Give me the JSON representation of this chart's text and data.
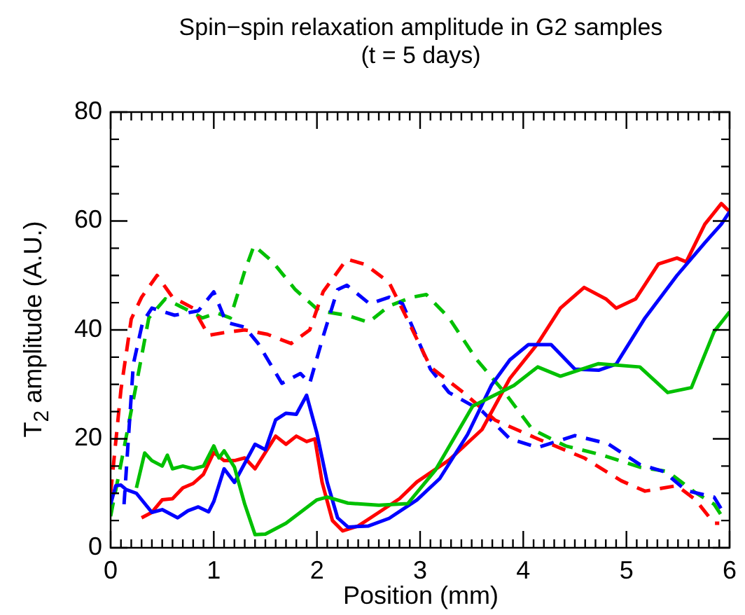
{
  "chart_data": {
    "type": "line",
    "title": "Spin−spin relaxation amplitude in G2 samples",
    "subtitle": "(t = 5 days)",
    "xlabel": "Position (mm)",
    "ylabel": "T$_{2}$ amplitude (A.U.)",
    "xlim": [
      0,
      6
    ],
    "ylim": [
      0,
      80
    ],
    "xticks": [
      0,
      {
        "value": 0.1,
        "label": null
      },
      {
        "value": 0.2,
        "label": null
      },
      {
        "value": 0.3,
        "label": null
      },
      {
        "value": 0.4,
        "label": null
      },
      {
        "value": 0.5,
        "label": null
      },
      {
        "value": 0.6,
        "label": null
      },
      {
        "value": 0.7,
        "label": null
      },
      {
        "value": 0.8,
        "label": null
      },
      {
        "value": 0.9,
        "label": null
      },
      1,
      {
        "value": 1.1,
        "label": null
      },
      {
        "value": 1.2,
        "label": null
      },
      {
        "value": 1.3,
        "label": null
      },
      {
        "value": 1.4,
        "label": null
      },
      {
        "value": 1.5,
        "label": null
      },
      {
        "value": 1.6,
        "label": null
      },
      {
        "value": 1.7,
        "label": null
      },
      {
        "value": 1.8,
        "label": null
      },
      {
        "value": 1.9,
        "label": null
      },
      2,
      {
        "value": 2.1,
        "label": null
      },
      {
        "value": 2.2,
        "label": null
      },
      {
        "value": 2.3,
        "label": null
      },
      {
        "value": 2.4,
        "label": null
      },
      {
        "value": 2.5,
        "label": null
      },
      {
        "value": 2.6,
        "label": null
      },
      {
        "value": 2.7,
        "label": null
      },
      {
        "value": 2.8,
        "label": null
      },
      {
        "value": 2.9,
        "label": null
      },
      3,
      {
        "value": 3.1,
        "label": null
      },
      {
        "value": 3.2,
        "label": null
      },
      {
        "value": 3.3,
        "label": null
      },
      {
        "value": 3.4,
        "label": null
      },
      {
        "value": 3.5,
        "label": null
      },
      {
        "value": 3.6,
        "label": null
      },
      {
        "value": 3.7,
        "label": null
      },
      {
        "value": 3.8,
        "label": null
      },
      {
        "value": 3.9,
        "label": null
      },
      4,
      {
        "value": 4.1,
        "label": null
      },
      {
        "value": 4.2,
        "label": null
      },
      {
        "value": 4.3,
        "label": null
      },
      {
        "value": 4.4,
        "label": null
      },
      {
        "value": 4.5,
        "label": null
      },
      {
        "value": 4.6,
        "label": null
      },
      {
        "value": 4.7,
        "label": null
      },
      {
        "value": 4.8,
        "label": null
      },
      {
        "value": 4.9,
        "label": null
      },
      5,
      {
        "value": 5.1,
        "label": null
      },
      {
        "value": 5.2,
        "label": null
      },
      {
        "value": 5.3,
        "label": null
      },
      {
        "value": 5.4,
        "label": null
      },
      {
        "value": 5.5,
        "label": null
      },
      {
        "value": 5.6,
        "label": null
      },
      {
        "value": 5.7,
        "label": null
      },
      {
        "value": 5.8,
        "label": null
      },
      {
        "value": 5.9,
        "label": null
      },
      6
    ],
    "yticks": [
      0,
      {
        "value": 5,
        "label": null
      },
      {
        "value": 10,
        "label": null
      },
      {
        "value": 15,
        "label": null
      },
      20,
      {
        "value": 25,
        "label": null
      },
      {
        "value": 30,
        "label": null
      },
      {
        "value": 35,
        "label": null
      },
      40,
      {
        "value": 45,
        "label": null
      },
      {
        "value": 50,
        "label": null
      },
      {
        "value": 55,
        "label": null
      },
      60,
      {
        "value": 65,
        "label": null
      },
      {
        "value": 70,
        "label": null
      },
      {
        "value": 75,
        "label": null
      },
      80
    ],
    "marker": "none",
    "series": [
      {
        "color": "#00c000",
        "line_style": "solid",
        "x": [
          0.25,
          0.33,
          0.4,
          0.5,
          0.55,
          0.6,
          0.7,
          0.8,
          0.9,
          1.0,
          1.05,
          1.1,
          1.2,
          1.3,
          1.4,
          1.5,
          1.7,
          2.0,
          2.1,
          2.3,
          2.6,
          2.88,
          3.15,
          3.51,
          3.91,
          4.14,
          4.36,
          4.73,
          5.13,
          5.4,
          5.63,
          5.85,
          6.0
        ],
        "values": [
          11,
          17.4,
          16,
          15,
          17,
          14.5,
          15,
          14.5,
          15,
          18.7,
          16.5,
          17.8,
          14.8,
          8,
          2.4,
          2.5,
          4.5,
          8.8,
          9.3,
          8.2,
          7.8,
          8.1,
          14.3,
          26,
          29.8,
          33.2,
          31.5,
          33.8,
          33.2,
          28.5,
          29.4,
          39.7,
          43.3
        ]
      },
      {
        "color": "#0000ff",
        "line_style": "solid",
        "x": [
          0,
          0.05,
          0.1,
          0.15,
          0.25,
          0.4,
          0.5,
          0.65,
          0.75,
          0.85,
          0.95,
          1.0,
          1.1,
          1.2,
          1.3,
          1.4,
          1.5,
          1.6,
          1.7,
          1.8,
          1.9,
          2.0,
          2.1,
          2.2,
          2.3,
          2.5,
          2.7,
          2.97,
          3.19,
          3.46,
          3.69,
          3.87,
          4.05,
          4.27,
          4.5,
          4.73,
          4.9,
          5.18,
          5.49,
          5.76,
          5.92,
          6.0
        ],
        "values": [
          8,
          11.4,
          11.5,
          10.7,
          10,
          6.5,
          7,
          5.5,
          6.8,
          7.5,
          6.6,
          8.5,
          14.5,
          12,
          15.5,
          19,
          18,
          23.5,
          24.7,
          24.5,
          28,
          21,
          12,
          5.5,
          3.8,
          4,
          5.4,
          8.8,
          12.7,
          20.8,
          29.8,
          34.5,
          37.3,
          37.3,
          32.8,
          32.6,
          33.7,
          42.2,
          50,
          56,
          59.4,
          61.7
        ]
      },
      {
        "color": "#ff0000",
        "line_style": "solid",
        "x": [
          0.3,
          0.4,
          0.5,
          0.6,
          0.7,
          0.8,
          0.9,
          1.0,
          1.1,
          1.2,
          1.3,
          1.4,
          1.5,
          1.6,
          1.7,
          1.8,
          1.9,
          1.98,
          2.05,
          2.15,
          2.25,
          2.4,
          2.6,
          2.8,
          2.97,
          3.28,
          3.6,
          3.87,
          4.14,
          4.36,
          4.59,
          4.8,
          4.9,
          5.09,
          5.31,
          5.49,
          5.58,
          5.76,
          5.92,
          6.0
        ],
        "values": [
          5.5,
          6.5,
          8.8,
          9,
          11,
          11.8,
          13.5,
          17.5,
          16,
          16,
          16.5,
          14.5,
          17.5,
          20.5,
          19,
          20.5,
          19.5,
          20,
          12,
          5,
          3.1,
          4,
          6.5,
          9,
          12.1,
          16.1,
          21.7,
          31.1,
          37.5,
          44,
          47.8,
          45.7,
          44,
          45.7,
          52.1,
          53.2,
          52.5,
          59.4,
          63.2,
          61.7
        ]
      },
      {
        "color": "#ff0000",
        "line_style": "dashed",
        "x": [
          0,
          0.1,
          0.2,
          0.3,
          0.45,
          0.6,
          0.8,
          0.95,
          1.1,
          1.3,
          1.52,
          1.75,
          1.93,
          2.06,
          2.29,
          2.47,
          2.7,
          2.87,
          3.1,
          3.42,
          3.73,
          4.14,
          4.59,
          4.95,
          5.18,
          5.49,
          5.67,
          5.85,
          5.9
        ],
        "values": [
          10,
          29,
          42,
          46,
          50,
          46,
          44,
          39,
          39.5,
          40,
          39.2,
          37.5,
          40,
          47,
          53,
          52,
          48.7,
          42.2,
          33.2,
          28.5,
          23.4,
          20,
          16.5,
          12.3,
          10.4,
          11.4,
          8.8,
          4.5,
          4.5
        ]
      },
      {
        "color": "#0000ff",
        "line_style": "dashed",
        "x": [
          0.13,
          0.22,
          0.31,
          0.4,
          0.62,
          0.85,
          1.0,
          1.12,
          1.3,
          1.43,
          1.66,
          1.84,
          1.93,
          2.06,
          2.2,
          2.29,
          2.51,
          2.7,
          2.83,
          3.1,
          3.28,
          3.6,
          3.87,
          4.14,
          4.5,
          4.82,
          5.13,
          5.36,
          5.58,
          5.85,
          5.92
        ],
        "values": [
          8,
          33.7,
          41.4,
          44,
          42.7,
          43.5,
          47,
          41.4,
          40.5,
          37.5,
          30.2,
          32,
          30.2,
          38.8,
          47.4,
          48.2,
          44.8,
          46,
          44.8,
          32.8,
          28.5,
          25.1,
          20,
          18.4,
          20.6,
          19.1,
          15.3,
          14,
          10.5,
          9.3,
          7.1
        ]
      },
      {
        "color": "#00c000",
        "line_style": "dashed",
        "x": [
          0,
          0.13,
          0.26,
          0.37,
          0.53,
          0.71,
          0.89,
          1.03,
          1.16,
          1.3,
          1.39,
          1.57,
          1.79,
          2.02,
          2.29,
          2.5,
          2.7,
          2.92,
          3.06,
          3.28,
          3.55,
          3.82,
          4.09,
          4.41,
          4.77,
          5.13,
          5.4,
          5.67,
          5.85,
          5.94
        ],
        "values": [
          5.8,
          18.3,
          31.1,
          42.2,
          45.7,
          44,
          42.2,
          43.1,
          42.2,
          50.8,
          55.5,
          52.5,
          47.4,
          43.5,
          42.7,
          41.4,
          44.4,
          46,
          46.5,
          42.2,
          34.5,
          28.5,
          21.7,
          18.7,
          17,
          14.8,
          14,
          10.1,
          8,
          5.4
        ]
      }
    ]
  }
}
